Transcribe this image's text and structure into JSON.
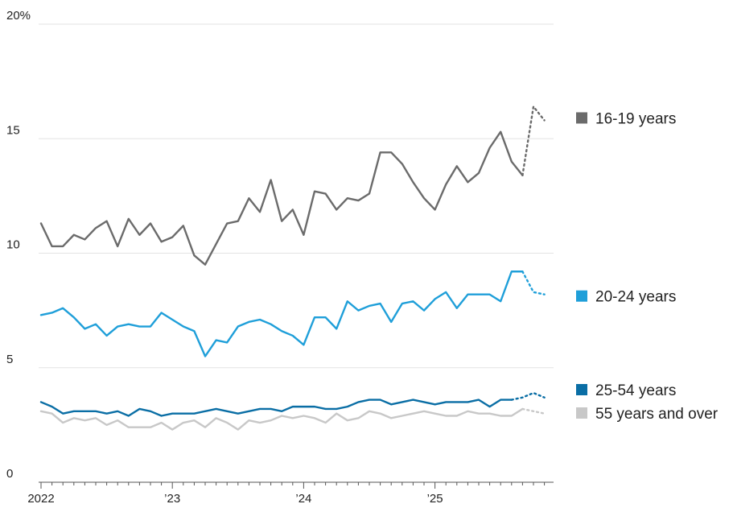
{
  "chart_data": {
    "type": "line",
    "title": "",
    "xlabel": "",
    "ylabel": "",
    "ylim": [
      0,
      20
    ],
    "yticks": [
      {
        "value": 0,
        "label": "0"
      },
      {
        "value": 5,
        "label": "5"
      },
      {
        "value": 10,
        "label": "10"
      },
      {
        "value": 15,
        "label": "15"
      },
      {
        "value": 20,
        "label": "20%"
      }
    ],
    "xticks": [
      {
        "date": "2022-01",
        "label": "2022"
      },
      {
        "date": "2023-01",
        "label": "’23"
      },
      {
        "date": "2024-01",
        "label": "’24"
      },
      {
        "date": "2025-01",
        "label": "’25"
      }
    ],
    "x_start": "2022-01",
    "grid": true,
    "legend": "right",
    "series": [
      {
        "name": "16-19 years",
        "color": "#6b6b6b",
        "values": [
          11.3,
          10.3,
          10.3,
          10.8,
          10.6,
          11.1,
          11.4,
          10.3,
          11.5,
          10.8,
          11.3,
          10.5,
          10.7,
          11.2,
          9.9,
          9.5,
          10.4,
          11.3,
          11.4,
          12.4,
          11.8,
          13.2,
          11.4,
          11.9,
          10.8,
          12.7,
          12.6,
          11.9,
          12.4,
          12.3,
          12.6,
          14.4,
          14.4,
          13.9,
          13.1,
          12.4,
          11.9,
          13.0,
          13.8,
          13.1,
          13.5,
          14.6,
          15.3,
          14.0,
          13.4,
          16.4,
          15.8
        ],
        "projected_from_index": 44
      },
      {
        "name": "20-24 years",
        "color": "#1f9fd9",
        "values": [
          7.3,
          7.4,
          7.6,
          7.2,
          6.7,
          6.9,
          6.4,
          6.8,
          6.9,
          6.8,
          6.8,
          7.4,
          7.1,
          6.8,
          6.6,
          5.5,
          6.2,
          6.1,
          6.8,
          7.0,
          7.1,
          6.9,
          6.6,
          6.4,
          6.0,
          7.2,
          7.2,
          6.7,
          7.9,
          7.5,
          7.7,
          7.8,
          7.0,
          7.8,
          7.9,
          7.5,
          8.0,
          8.3,
          7.6,
          8.2,
          8.2,
          8.2,
          7.9,
          9.2,
          9.2,
          8.3,
          8.2
        ],
        "projected_from_index": 44
      },
      {
        "name": "25-54 years",
        "color": "#0a6ea5",
        "values": [
          3.5,
          3.3,
          3.0,
          3.1,
          3.1,
          3.1,
          3.0,
          3.1,
          2.9,
          3.2,
          3.1,
          2.9,
          3.0,
          3.0,
          3.0,
          3.1,
          3.2,
          3.1,
          3.0,
          3.1,
          3.2,
          3.2,
          3.1,
          3.3,
          3.3,
          3.3,
          3.2,
          3.2,
          3.3,
          3.5,
          3.6,
          3.6,
          3.4,
          3.5,
          3.6,
          3.5,
          3.4,
          3.5,
          3.5,
          3.5,
          3.6,
          3.3,
          3.6,
          3.6,
          3.7,
          3.9,
          3.7
        ],
        "projected_from_index": 43
      },
      {
        "name": "55 years and over",
        "color": "#c8c8c8",
        "values": [
          3.1,
          3.0,
          2.6,
          2.8,
          2.7,
          2.8,
          2.5,
          2.7,
          2.4,
          2.4,
          2.4,
          2.6,
          2.3,
          2.6,
          2.7,
          2.4,
          2.8,
          2.6,
          2.3,
          2.7,
          2.6,
          2.7,
          2.9,
          2.8,
          2.9,
          2.8,
          2.6,
          3.0,
          2.7,
          2.8,
          3.1,
          3.0,
          2.8,
          2.9,
          3.0,
          3.1,
          3.0,
          2.9,
          2.9,
          3.1,
          3.0,
          3.0,
          2.9,
          2.9,
          3.2,
          3.1,
          3.0
        ],
        "projected_from_index": 44
      }
    ]
  }
}
